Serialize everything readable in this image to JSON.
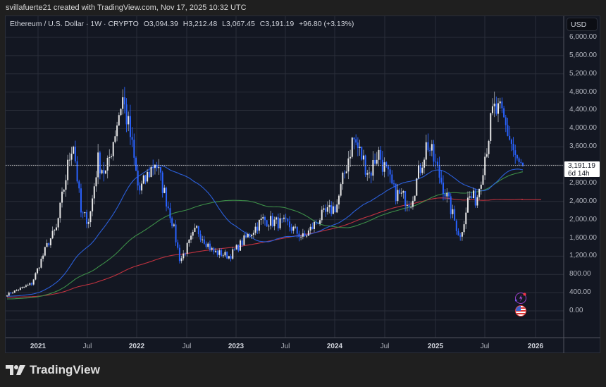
{
  "credit": "svillafuerte21 created with TradingView.com, Nov 17, 2025 10:32 UTC",
  "legend": {
    "symbol": "Ethereum / U.S. Dollar · 1W · CRYPTO",
    "open": "O3,094.39",
    "high": "H3,212.48",
    "low": "L3,067.45",
    "close": "C3,191.19",
    "change": "+96.80 (+3.13%)"
  },
  "currency_button": "USD",
  "price_label": {
    "price": "3,191.19",
    "countdown": "6d 14h"
  },
  "brand": "TradingView",
  "icons": [
    "lightning-indicator-icon",
    "us-flag-event-icon"
  ],
  "colors": {
    "background": "#131722",
    "grid": "#2a2e39",
    "up_candle": "#e6e6e6",
    "down_candle": "#2962ff",
    "ma_blue": "#2b5fd9",
    "ma_green": "#3d8f48",
    "ma_red": "#c1323f"
  },
  "chart_data": {
    "type": "candlestick",
    "title": "Ethereum / U.S. Dollar · 1W · CRYPTO",
    "xlabel": "",
    "ylabel": "USD",
    "ylim": [
      -400,
      6400
    ],
    "y_ticks": [
      "6,000.00",
      "5,600.00",
      "5,200.00",
      "4,800.00",
      "4,400.00",
      "4,000.00",
      "3,600.00",
      "2,800.00",
      "2,400.00",
      "2,000.00",
      "1,600.00",
      "1,200.00",
      "800.00",
      "400.00",
      "0.00"
    ],
    "y_tick_values": [
      6000,
      5600,
      5200,
      4800,
      4400,
      4000,
      3600,
      2800,
      2400,
      2000,
      1600,
      1200,
      800,
      400,
      0
    ],
    "x_ticks": [
      {
        "label": "2021",
        "x": 54,
        "year": true
      },
      {
        "label": "Jul",
        "x": 124,
        "year": false
      },
      {
        "label": "2022",
        "x": 194,
        "year": true
      },
      {
        "label": "Jul",
        "x": 265,
        "year": false
      },
      {
        "label": "2023",
        "x": 335,
        "year": true
      },
      {
        "label": "Jul",
        "x": 405,
        "year": false
      },
      {
        "label": "2024",
        "x": 475,
        "year": true
      },
      {
        "label": "Jul",
        "x": 546,
        "year": false
      },
      {
        "label": "2025",
        "x": 618,
        "year": true
      },
      {
        "label": "Jul",
        "x": 688,
        "year": false
      },
      {
        "label": "2026",
        "x": 760,
        "year": true
      }
    ],
    "grid": true,
    "last_close": 3191.19,
    "series_close_anchors": [
      {
        "date": "2020-09",
        "close": 360
      },
      {
        "date": "2020-12",
        "close": 600
      },
      {
        "date": "2021-02",
        "close": 1500
      },
      {
        "date": "2021-03",
        "close": 1800
      },
      {
        "date": "2021-05",
        "close": 3800
      },
      {
        "date": "2021-06",
        "close": 2100
      },
      {
        "date": "2021-07",
        "close": 2000
      },
      {
        "date": "2021-08",
        "close": 3300
      },
      {
        "date": "2021-09",
        "close": 3000
      },
      {
        "date": "2021-11",
        "close": 4700
      },
      {
        "date": "2021-12",
        "close": 3800
      },
      {
        "date": "2022-01",
        "close": 2600
      },
      {
        "date": "2022-03",
        "close": 3300
      },
      {
        "date": "2022-05",
        "close": 2000
      },
      {
        "date": "2022-06",
        "close": 1100
      },
      {
        "date": "2022-08",
        "close": 1800
      },
      {
        "date": "2022-10",
        "close": 1300
      },
      {
        "date": "2022-12",
        "close": 1200
      },
      {
        "date": "2023-02",
        "close": 1600
      },
      {
        "date": "2023-04",
        "close": 2000
      },
      {
        "date": "2023-07",
        "close": 1900
      },
      {
        "date": "2023-09",
        "close": 1600
      },
      {
        "date": "2023-11",
        "close": 2050
      },
      {
        "date": "2024-01",
        "close": 2300
      },
      {
        "date": "2024-03",
        "close": 3800
      },
      {
        "date": "2024-05",
        "close": 3000
      },
      {
        "date": "2024-06",
        "close": 3500
      },
      {
        "date": "2024-08",
        "close": 2600
      },
      {
        "date": "2024-10",
        "close": 2400
      },
      {
        "date": "2024-12",
        "close": 3700
      },
      {
        "date": "2025-02",
        "close": 2700
      },
      {
        "date": "2025-04",
        "close": 1600
      },
      {
        "date": "2025-05",
        "close": 2500
      },
      {
        "date": "2025-06",
        "close": 2450
      },
      {
        "date": "2025-08",
        "close": 4400
      },
      {
        "date": "2025-09",
        "close": 4300
      },
      {
        "date": "2025-10",
        "close": 3800
      },
      {
        "date": "2025-11",
        "close": 3191
      }
    ],
    "moving_averages": [
      {
        "name": "MA (blue, ~50W)",
        "color": "#2b5fd9",
        "last": 3080
      },
      {
        "name": "MA (green, ~100W)",
        "color": "#3d8f48",
        "last": 3020
      },
      {
        "name": "MA (red, ~200W)",
        "color": "#c1323f",
        "last": 2440
      }
    ]
  }
}
